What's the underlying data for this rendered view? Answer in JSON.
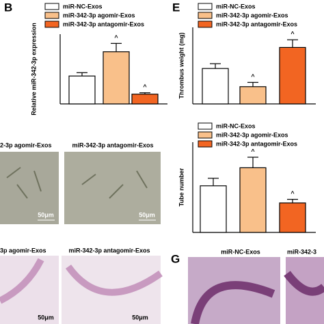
{
  "chart_data": [
    {
      "type": "bar",
      "panel": "B",
      "ylabel": "Relative miR-342-3p expression",
      "categories": [
        "miR-NC-Exos",
        "miR-342-3p agomir-Exos",
        "miR-342-3p antagomir-Exos"
      ],
      "colors": [
        "#ffffff",
        "#f9c08a",
        "#f26522"
      ],
      "values": [
        1.0,
        1.87,
        0.35
      ],
      "errors": [
        0.12,
        0.3,
        0.05
      ],
      "value_annotations": [
        null,
        "^",
        "^"
      ],
      "ylim": [
        0,
        2.5
      ]
    },
    {
      "type": "bar",
      "panel": "E",
      "ylabel": "Thrombus weight (mg)",
      "categories": [
        "miR-NC-Exos",
        "miR-342-3p agomir-Exos",
        "miR-342-3p antagomir-Exos"
      ],
      "colors": [
        "#ffffff",
        "#f9c08a",
        "#f26522"
      ],
      "values": [
        3.7,
        1.8,
        5.9
      ],
      "errors": [
        0.5,
        0.45,
        0.8
      ],
      "value_annotations": [
        null,
        "^",
        "^"
      ],
      "ylim": [
        0,
        8
      ]
    },
    {
      "type": "bar",
      "ylabel": "Tube number",
      "categories": [
        "miR-NC-Exos",
        "miR-342-3p agomir-Exos",
        "miR-342-3p antagomir-Exos"
      ],
      "colors": [
        "#ffffff",
        "#f9c08a",
        "#f26522"
      ],
      "values": [
        15.5,
        21.5,
        9.8
      ],
      "errors": [
        2.5,
        3.5,
        1.2
      ],
      "value_annotations": [
        null,
        "^",
        "^"
      ],
      "ylim": [
        0,
        30
      ]
    }
  ],
  "images": {
    "mid_left": {
      "caption": "2-3p agomir-Exos",
      "scale": "50μm"
    },
    "mid_right": {
      "caption": "miR-342-3p antagomir-Exos",
      "scale": "50μm"
    },
    "bot_left": {
      "caption": "3p agomir-Exos",
      "scale": "50μm"
    },
    "bot_right": {
      "caption": "miR-342-3p antagomir-Exos",
      "scale": "50μm"
    },
    "g_label": "G",
    "g_left": {
      "caption": "miR-NC-Exos"
    },
    "g_right": {
      "caption": "miR-342-3"
    }
  }
}
